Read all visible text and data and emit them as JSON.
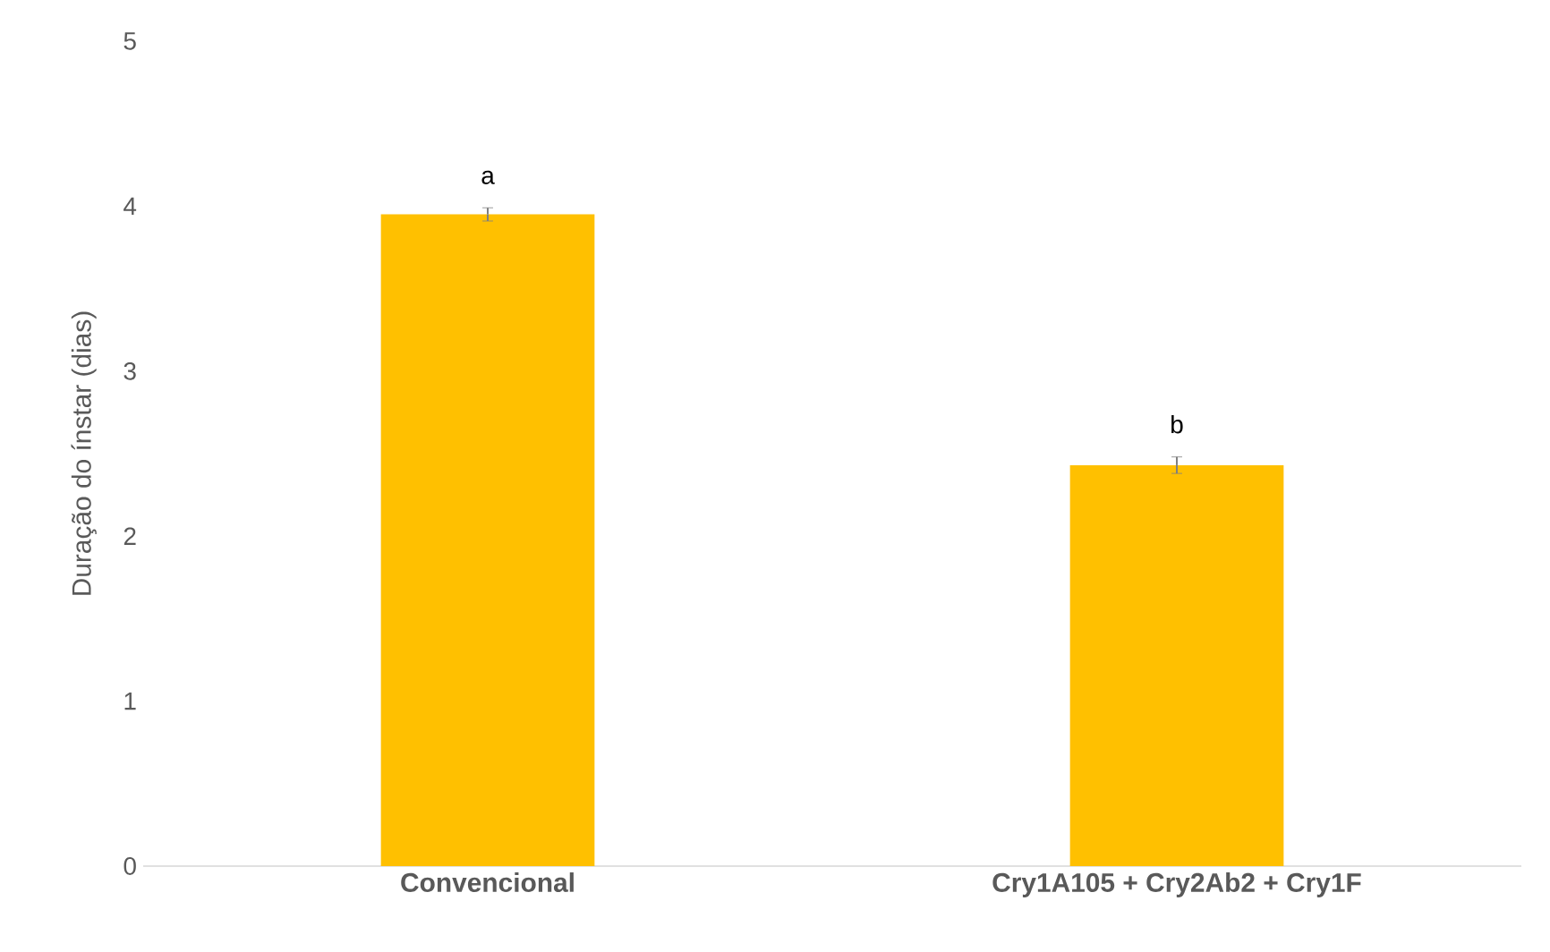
{
  "chart_data": {
    "type": "bar",
    "ylabel": "Duração do ínstar (dias)",
    "categories": [
      "Convencional",
      "Cry1A105 + Cry2Ab2 + Cry1F"
    ],
    "values": [
      3.95,
      2.43
    ],
    "errors": [
      0.04,
      0.05
    ],
    "color": "#ffc000",
    "ylim": [
      0,
      5
    ],
    "yticks": [
      0,
      1,
      2,
      3,
      4,
      5
    ],
    "annotations": [
      "a",
      "b"
    ]
  }
}
